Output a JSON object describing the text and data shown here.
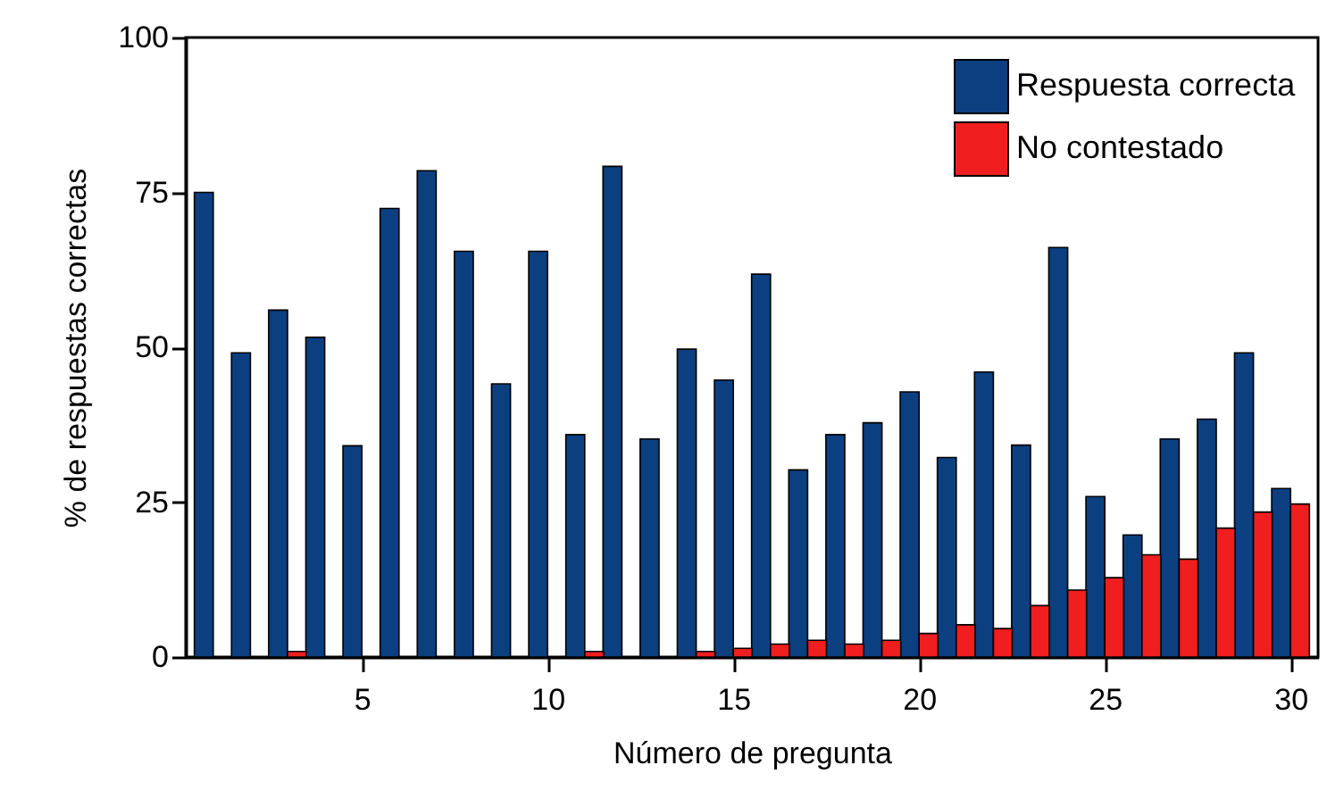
{
  "chart_data": {
    "type": "bar",
    "xlabel": "Número de pregunta",
    "ylabel": "% de respuestas correctas",
    "x": [
      1,
      2,
      3,
      4,
      5,
      6,
      7,
      8,
      9,
      10,
      11,
      12,
      13,
      14,
      15,
      16,
      17,
      18,
      19,
      20,
      21,
      22,
      23,
      24,
      25,
      26,
      27,
      28,
      29,
      30
    ],
    "series": [
      {
        "name": "Respuesta correcta",
        "color": "#0b3f80",
        "values": [
          75,
          49.1,
          56,
          51.6,
          34.1,
          72.4,
          78.5,
          65.5,
          44.1,
          65.5,
          35.9,
          79.2,
          35.2,
          49.7,
          44.7,
          61.8,
          30.2,
          35.9,
          37.8,
          42.8,
          32.2,
          46,
          34.2,
          66.1,
          25.9,
          19.7,
          35.2,
          38.4,
          49.1,
          27.2
        ]
      },
      {
        "name": "No contestado",
        "color": "#f01e1e",
        "values": [
          null,
          null,
          0.9,
          null,
          null,
          null,
          null,
          null,
          null,
          null,
          0.9,
          null,
          null,
          0.9,
          1.4,
          2.1,
          2.7,
          2.1,
          2.7,
          3.8,
          5.2,
          4.6,
          8.3,
          10.8,
          12.8,
          16.5,
          15.8,
          20.8,
          23.4,
          24.7
        ]
      }
    ],
    "xlim": [
      0.5,
      30.5
    ],
    "xticks": [
      5,
      10,
      15,
      20,
      25,
      30
    ],
    "ylim": [
      0,
      100
    ],
    "yticks": [
      0,
      25,
      50,
      75,
      100
    ],
    "legend": "top right"
  }
}
